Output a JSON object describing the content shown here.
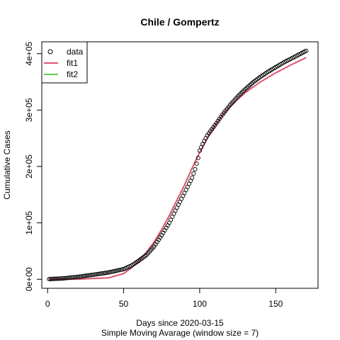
{
  "chart_data": {
    "type": "scatter",
    "title": "Chile / Gompertz",
    "xlabel": "Days since 2020-03-15",
    "xlabel2": "Simple Moving Avarage (window size = 7)",
    "ylabel": "Cumulative Cases",
    "xlim": [
      -3.8,
      177.8
    ],
    "ylim": [
      -16000,
      421000
    ],
    "x_ticks": [
      0,
      50,
      100,
      150
    ],
    "x_tick_labels": [
      "0",
      "50",
      "100",
      "150"
    ],
    "y_ticks": [
      0,
      100000,
      200000,
      300000,
      400000
    ],
    "y_tick_labels": [
      "0e+00",
      "1e+05",
      "2e+05",
      "3e+05",
      "4e+05"
    ],
    "grid": false,
    "legend": {
      "position": "top-left",
      "entries": [
        {
          "label": "data",
          "kind": "point",
          "color": "#000000"
        },
        {
          "label": "fit1",
          "kind": "line",
          "color": "#DF536B"
        },
        {
          "label": "fit2",
          "kind": "line",
          "color": "#61D04F"
        }
      ]
    },
    "x_range": [
      1,
      170
    ],
    "series": [
      {
        "name": "data",
        "kind": "points",
        "color": "#000000",
        "x": [
          1,
          10,
          20,
          30,
          40,
          50,
          55,
          60,
          65,
          70,
          75,
          80,
          85,
          90,
          95,
          97,
          99,
          100,
          102,
          105,
          110,
          115,
          120,
          125,
          130,
          135,
          140,
          145,
          150,
          155,
          160,
          165,
          170
        ],
        "y": [
          300,
          1500,
          4300,
          8000,
          12000,
          18000,
          24000,
          33000,
          43000,
          58000,
          78000,
          100000,
          127000,
          153000,
          180000,
          195000,
          215000,
          228000,
          240000,
          255000,
          273000,
          292000,
          309000,
          324000,
          337000,
          349000,
          359000,
          368000,
          376000,
          384000,
          391000,
          398000,
          405000
        ]
      },
      {
        "name": "fit1",
        "kind": "line",
        "color": "#DF536B",
        "x": [
          1,
          20,
          40,
          50,
          55,
          60,
          65,
          70,
          75,
          80,
          85,
          90,
          95,
          100,
          105,
          110,
          115,
          120,
          125,
          130,
          140,
          150,
          160,
          170
        ],
        "y": [
          0,
          200,
          2500,
          10000,
          20000,
          33000,
          48000,
          66000,
          88000,
          113000,
          140000,
          167000,
          197000,
          225000,
          250000,
          272000,
          291000,
          306000,
          319000,
          331000,
          350000,
          366000,
          380000,
          393000
        ]
      }
    ]
  }
}
